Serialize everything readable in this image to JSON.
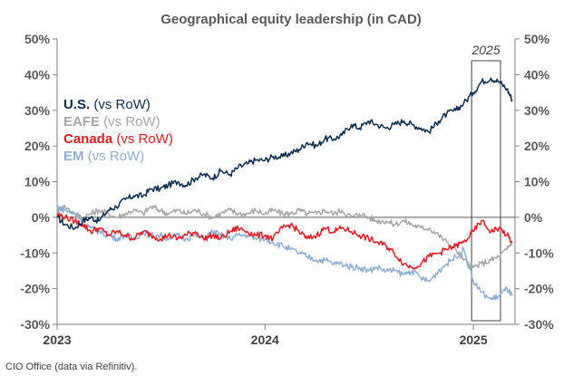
{
  "chart_data": {
    "type": "line",
    "title": "Geographical equity leadership (in CAD)",
    "xlabel": "",
    "ylabel": "",
    "ylim": [
      -30,
      50
    ],
    "yticks": [
      "50%",
      "40%",
      "30%",
      "20%",
      "10%",
      "0%",
      "-10%",
      "-20%",
      "-30%"
    ],
    "ytick_values": [
      50,
      40,
      30,
      20,
      10,
      0,
      -10,
      -20,
      -30
    ],
    "xticks": [
      "2023",
      "2024",
      "2025"
    ],
    "xtick_values": [
      "2023-01-01",
      "2024-01-01",
      "2025-01-01"
    ],
    "xlim": [
      "2023-01-01",
      "2025-03-15"
    ],
    "grid": false,
    "legend": "top-left",
    "legend_suffix": " (vs RoW)",
    "series": [
      {
        "name": "U.S.",
        "color": "#0a2d4f",
        "x": [
          "2023-01-01",
          "2023-01-15",
          "2023-02-01",
          "2023-02-15",
          "2023-03-01",
          "2023-03-15",
          "2023-04-01",
          "2023-04-15",
          "2023-05-01",
          "2023-05-15",
          "2023-06-01",
          "2023-06-15",
          "2023-07-01",
          "2023-07-15",
          "2023-08-01",
          "2023-08-15",
          "2023-09-01",
          "2023-09-15",
          "2023-10-01",
          "2023-10-15",
          "2023-11-01",
          "2023-11-15",
          "2023-12-01",
          "2023-12-15",
          "2024-01-01",
          "2024-01-15",
          "2024-02-01",
          "2024-02-15",
          "2024-03-01",
          "2024-03-15",
          "2024-04-01",
          "2024-04-15",
          "2024-05-01",
          "2024-05-15",
          "2024-06-01",
          "2024-06-15",
          "2024-07-01",
          "2024-07-15",
          "2024-08-01",
          "2024-08-15",
          "2024-09-01",
          "2024-09-15",
          "2024-10-01",
          "2024-10-15",
          "2024-11-01",
          "2024-11-15",
          "2024-12-01",
          "2024-12-15",
          "2025-01-01",
          "2025-01-15",
          "2025-02-01",
          "2025-02-15",
          "2025-03-01",
          "2025-03-10"
        ],
        "values": [
          0,
          -2,
          -3,
          -1,
          0,
          -1,
          2,
          3,
          5,
          6,
          6,
          8,
          8,
          9,
          10,
          9,
          11,
          12,
          11,
          13,
          12,
          14,
          15,
          16,
          16,
          17,
          17,
          18,
          19,
          21,
          20,
          22,
          22,
          23,
          26,
          25,
          27,
          26,
          25,
          26,
          27,
          26,
          25,
          24,
          27,
          29,
          30,
          32,
          35,
          38,
          39,
          38,
          36,
          33
        ]
      },
      {
        "name": "EAFE",
        "color": "#a6a6a6",
        "x": [
          "2023-01-01",
          "2023-01-15",
          "2023-02-01",
          "2023-02-15",
          "2023-03-01",
          "2023-03-15",
          "2023-04-01",
          "2023-04-15",
          "2023-05-01",
          "2023-05-15",
          "2023-06-01",
          "2023-06-15",
          "2023-07-01",
          "2023-07-15",
          "2023-08-01",
          "2023-08-15",
          "2023-09-01",
          "2023-09-15",
          "2023-10-01",
          "2023-10-15",
          "2023-11-01",
          "2023-11-15",
          "2023-12-01",
          "2023-12-15",
          "2024-01-01",
          "2024-01-15",
          "2024-02-01",
          "2024-02-15",
          "2024-03-01",
          "2024-03-15",
          "2024-04-01",
          "2024-04-15",
          "2024-05-01",
          "2024-05-15",
          "2024-06-01",
          "2024-06-15",
          "2024-07-01",
          "2024-07-15",
          "2024-08-01",
          "2024-08-15",
          "2024-09-01",
          "2024-09-15",
          "2024-10-01",
          "2024-10-15",
          "2024-11-01",
          "2024-11-15",
          "2024-12-01",
          "2024-12-15",
          "2025-01-01",
          "2025-01-15",
          "2025-02-01",
          "2025-02-15",
          "2025-03-01",
          "2025-03-10"
        ],
        "values": [
          2,
          3,
          1,
          0,
          1,
          2,
          1,
          0,
          1,
          2,
          1,
          3,
          2,
          1,
          2,
          1,
          2,
          1,
          0,
          1,
          2,
          1,
          1,
          2,
          1,
          2,
          1,
          1,
          2,
          1,
          1,
          2,
          1,
          2,
          0,
          1,
          0,
          -1,
          -1,
          -2,
          -1,
          -2,
          -3,
          -3,
          -5,
          -7,
          -9,
          -12,
          -14,
          -13,
          -12,
          -11,
          -9,
          -7
        ]
      },
      {
        "name": "Canada",
        "color": "#e31b23",
        "x": [
          "2023-01-01",
          "2023-01-15",
          "2023-02-01",
          "2023-02-15",
          "2023-03-01",
          "2023-03-15",
          "2023-04-01",
          "2023-04-15",
          "2023-05-01",
          "2023-05-15",
          "2023-06-01",
          "2023-06-15",
          "2023-07-01",
          "2023-07-15",
          "2023-08-01",
          "2023-08-15",
          "2023-09-01",
          "2023-09-15",
          "2023-10-01",
          "2023-10-15",
          "2023-11-01",
          "2023-11-15",
          "2023-12-01",
          "2023-12-15",
          "2024-01-01",
          "2024-01-15",
          "2024-02-01",
          "2024-02-15",
          "2024-03-01",
          "2024-03-15",
          "2024-04-01",
          "2024-04-15",
          "2024-05-01",
          "2024-05-15",
          "2024-06-01",
          "2024-06-15",
          "2024-07-01",
          "2024-07-15",
          "2024-08-01",
          "2024-08-15",
          "2024-09-01",
          "2024-09-15",
          "2024-10-01",
          "2024-10-15",
          "2024-11-01",
          "2024-11-15",
          "2024-12-01",
          "2024-12-15",
          "2025-01-01",
          "2025-01-15",
          "2025-02-01",
          "2025-02-15",
          "2025-03-01",
          "2025-03-10"
        ],
        "values": [
          1,
          0,
          -1,
          -2,
          -4,
          -3,
          -5,
          -4,
          -5,
          -6,
          -4,
          -5,
          -6,
          -5,
          -6,
          -5,
          -4,
          -6,
          -5,
          -6,
          -4,
          -3,
          -4,
          -5,
          -5,
          -6,
          -3,
          -2,
          -4,
          -6,
          -5,
          -3,
          -4,
          -3,
          -4,
          -5,
          -6,
          -7,
          -8,
          -10,
          -13,
          -14,
          -13,
          -11,
          -10,
          -9,
          -8,
          -7,
          -4,
          -1,
          -4,
          -3,
          -5,
          -7
        ]
      },
      {
        "name": "EM",
        "color": "#8eaed4",
        "x": [
          "2023-01-01",
          "2023-01-15",
          "2023-02-01",
          "2023-02-15",
          "2023-03-01",
          "2023-03-15",
          "2023-04-01",
          "2023-04-15",
          "2023-05-01",
          "2023-05-15",
          "2023-06-01",
          "2023-06-15",
          "2023-07-01",
          "2023-07-15",
          "2023-08-01",
          "2023-08-15",
          "2023-09-01",
          "2023-09-15",
          "2023-10-01",
          "2023-10-15",
          "2023-11-01",
          "2023-11-15",
          "2023-12-01",
          "2023-12-15",
          "2024-01-01",
          "2024-01-15",
          "2024-02-01",
          "2024-02-15",
          "2024-03-01",
          "2024-03-15",
          "2024-04-01",
          "2024-04-15",
          "2024-05-01",
          "2024-05-15",
          "2024-06-01",
          "2024-06-15",
          "2024-07-01",
          "2024-07-15",
          "2024-08-01",
          "2024-08-15",
          "2024-09-01",
          "2024-09-15",
          "2024-10-01",
          "2024-10-15",
          "2024-11-01",
          "2024-11-15",
          "2024-12-01",
          "2024-12-15",
          "2025-01-01",
          "2025-01-15",
          "2025-02-01",
          "2025-02-15",
          "2025-03-01",
          "2025-03-10"
        ],
        "values": [
          3,
          2,
          1,
          -1,
          -3,
          -4,
          -5,
          -6,
          -5,
          -6,
          -4,
          -5,
          -5,
          -6,
          -5,
          -6,
          -5,
          -6,
          -4,
          -5,
          -6,
          -5,
          -5,
          -6,
          -6,
          -7,
          -8,
          -9,
          -10,
          -11,
          -12,
          -12,
          -13,
          -13,
          -14,
          -14,
          -15,
          -14,
          -15,
          -15,
          -16,
          -15,
          -17,
          -18,
          -15,
          -13,
          -11,
          -9,
          -18,
          -21,
          -23,
          -22,
          -20,
          -22
        ]
      }
    ],
    "annotations": [
      {
        "text": "2025",
        "type": "highlight-box",
        "x_range": [
          "2025-01-01",
          "2025-03-15"
        ]
      }
    ]
  },
  "source": "CIO Office (data via Refinitiv)."
}
